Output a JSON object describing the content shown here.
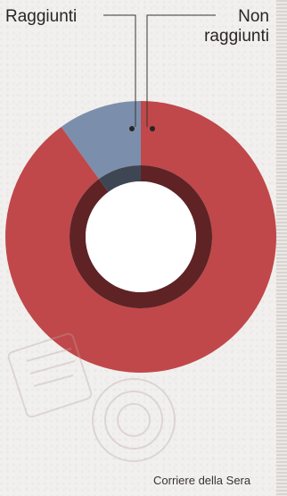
{
  "chart_data": {
    "type": "pie",
    "variant": "donut",
    "categories": [
      "Raggiunti",
      "Non raggiunti"
    ],
    "values": [
      10,
      90
    ],
    "colors": [
      "#7b8fad",
      "#c0484a"
    ],
    "inner_ring_colors": [
      "#3e4654",
      "#5f2325"
    ],
    "center_color": "#ffffff",
    "legend_placement": "top"
  },
  "labels": {
    "left": "Raggiunti",
    "right_line1": "Non",
    "right_line2": "raggiunti"
  },
  "credit": "Corriere della Sera"
}
